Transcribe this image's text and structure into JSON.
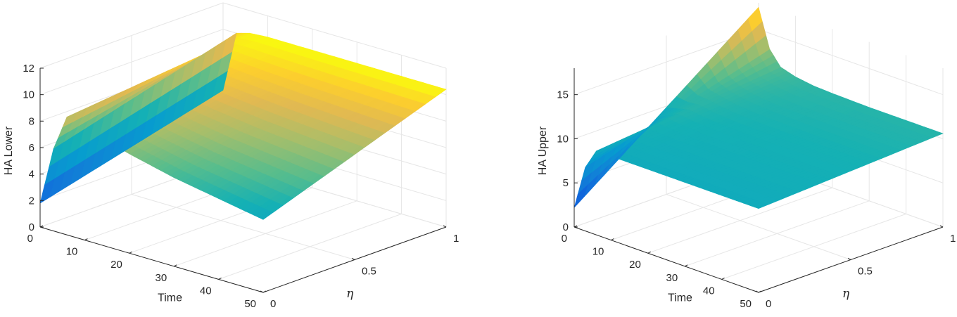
{
  "chart_data": [
    {
      "type": "surface",
      "title": "",
      "xlabel": "Time",
      "ylabel": "η",
      "zlabel": "HA Lower",
      "xlim": [
        0,
        50
      ],
      "ylim": [
        0,
        1
      ],
      "zlim": [
        0,
        12
      ],
      "xticks": [
        "0",
        "10",
        "20",
        "30",
        "40",
        "50"
      ],
      "yticks": [
        "0",
        "0.5",
        "1"
      ],
      "zticks": [
        "0",
        "2",
        "4",
        "6",
        "8",
        "10",
        "12"
      ],
      "grid": true,
      "colormap": "parula",
      "surface": {
        "time": [
          0,
          3,
          6,
          10,
          15,
          20,
          30,
          40,
          50
        ],
        "eta": [
          0,
          1
        ],
        "values": [
          [
            1.8,
            5.4
          ],
          [
            6.2,
            10.0
          ],
          [
            8.9,
            10.3
          ],
          [
            8.6,
            10.4
          ],
          [
            8.0,
            10.4
          ],
          [
            7.5,
            10.4
          ],
          [
            6.7,
            10.4
          ],
          [
            6.1,
            10.4
          ],
          [
            5.5,
            10.4
          ]
        ]
      }
    },
    {
      "type": "surface",
      "title": "",
      "xlabel": "Time",
      "ylabel": "η",
      "zlabel": "HA Upper",
      "xlim": [
        0,
        50
      ],
      "ylim": [
        0,
        1
      ],
      "zlim": [
        0,
        18
      ],
      "xticks": [
        "0",
        "10",
        "20",
        "30",
        "40",
        "50"
      ],
      "yticks": [
        "0",
        "0.5",
        "1"
      ],
      "zticks": [
        "0",
        "5",
        "10",
        "15"
      ],
      "grid": true,
      "colormap": "parula",
      "surface": {
        "time": [
          0,
          3,
          6,
          10,
          15,
          20,
          30,
          40,
          50
        ],
        "eta": [
          0,
          1
        ],
        "values": [
          [
            2.2,
            17.5
          ],
          [
            7.2,
            13.2
          ],
          [
            9.5,
            11.6
          ],
          [
            9.5,
            11.1
          ],
          [
            9.5,
            10.8
          ],
          [
            9.5,
            10.7
          ],
          [
            9.5,
            10.6
          ],
          [
            9.5,
            10.6
          ],
          [
            9.5,
            10.6
          ]
        ]
      }
    }
  ]
}
